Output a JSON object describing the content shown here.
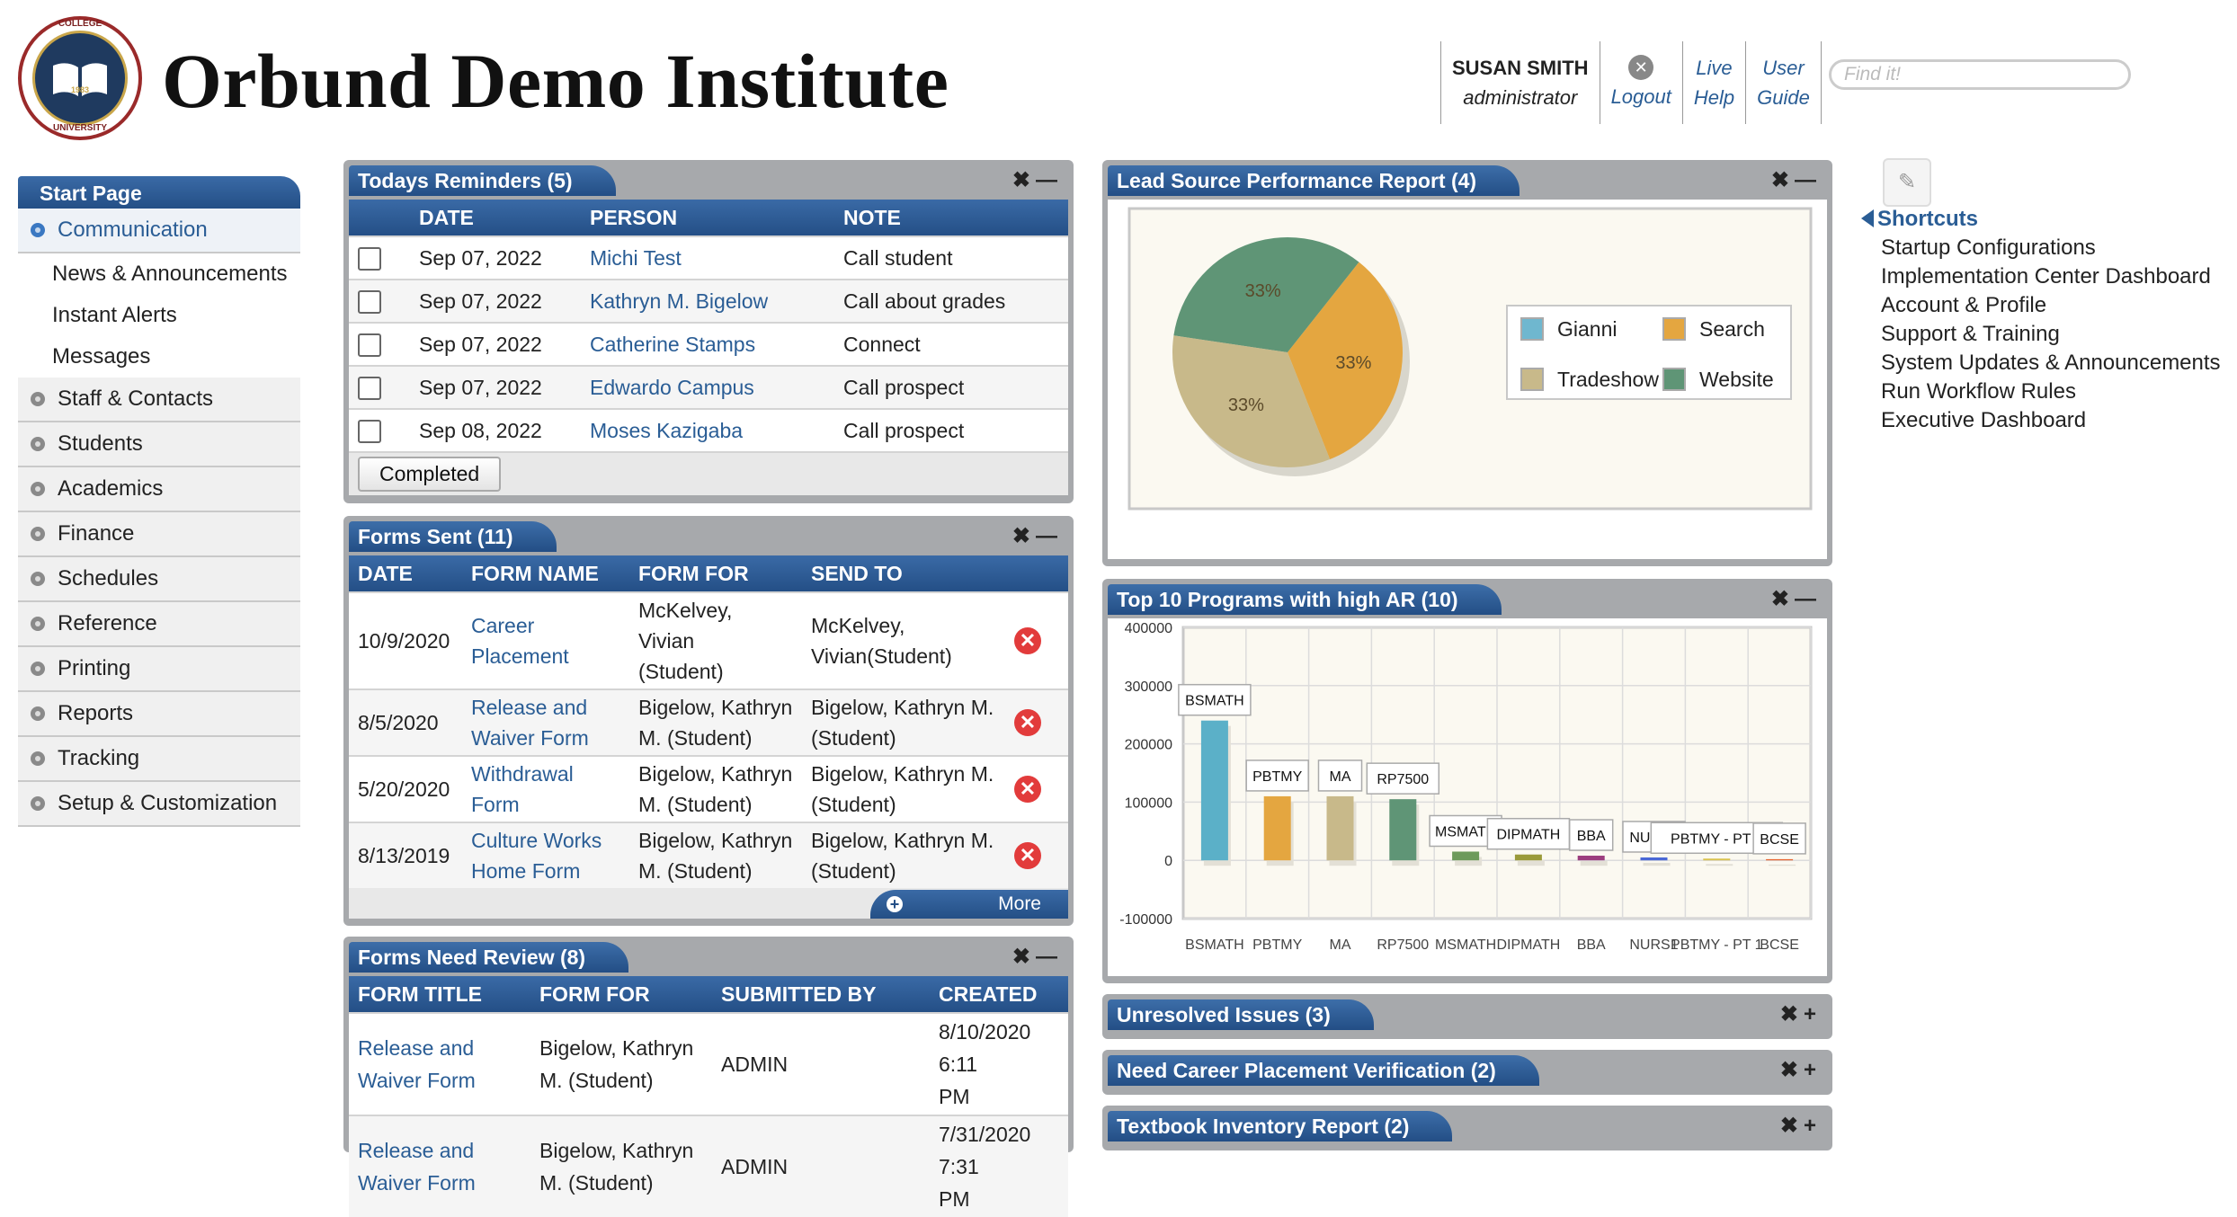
{
  "header": {
    "logo_text_top": "COLLEGE",
    "logo_text_year": "1983",
    "logo_text_bottom": "UNIVERSITY",
    "title": "Orbund Demo Institute",
    "user_name": "SUSAN SMITH",
    "user_role": "administrator",
    "logout": "Logout",
    "live_help_1": "Live",
    "live_help_2": "Help",
    "user_guide_1": "User",
    "user_guide_2": "Guide",
    "search_placeholder": "Find it!"
  },
  "nav": {
    "start": "Start Page",
    "communication": "Communication",
    "sub": [
      "News & Announcements",
      "Instant Alerts",
      "Messages"
    ],
    "items": [
      "Staff & Contacts",
      "Students",
      "Academics",
      "Finance",
      "Schedules",
      "Reference",
      "Printing",
      "Reports",
      "Tracking",
      "Setup & Customization"
    ]
  },
  "reminders": {
    "title": "Todays Reminders (5)",
    "headers": [
      "DATE",
      "PERSON",
      "NOTE"
    ],
    "rows": [
      {
        "date": "Sep 07, 2022",
        "person": "Michi Test",
        "note": "Call student"
      },
      {
        "date": "Sep 07, 2022",
        "person": "Kathryn M. Bigelow",
        "note": "Call about grades"
      },
      {
        "date": "Sep 07, 2022",
        "person": "Catherine Stamps",
        "note": "Connect"
      },
      {
        "date": "Sep 07, 2022",
        "person": "Edwardo Campus",
        "note": "Call prospect"
      },
      {
        "date": "Sep 08, 2022",
        "person": "Moses Kazigaba",
        "note": "Call prospect"
      }
    ],
    "button": "Completed"
  },
  "forms_sent": {
    "title": "Forms Sent (11)",
    "headers": [
      "DATE",
      "FORM NAME",
      "FORM FOR",
      "SEND TO"
    ],
    "rows": [
      {
        "date": "10/9/2020",
        "name1": "Career",
        "name2": "Placement",
        "for1": "McKelvey, Vivian",
        "for2": "(Student)",
        "to1": "McKelvey,",
        "to2": "Vivian(Student)"
      },
      {
        "date": "8/5/2020",
        "name1": "Release and",
        "name2": "Waiver Form",
        "for1": "Bigelow, Kathryn",
        "for2": "M. (Student)",
        "to1": "Bigelow, Kathryn M.",
        "to2": "(Student)"
      },
      {
        "date": "5/20/2020",
        "name1": "Withdrawal",
        "name2": "Form",
        "for1": "Bigelow, Kathryn",
        "for2": "M. (Student)",
        "to1": "Bigelow, Kathryn M.",
        "to2": "(Student)"
      },
      {
        "date": "8/13/2019",
        "name1": "Culture Works",
        "name2": "Home Form",
        "for1": "Bigelow, Kathryn",
        "for2": "M. (Student)",
        "to1": "Bigelow, Kathryn M.",
        "to2": "(Student)"
      }
    ],
    "more": "More"
  },
  "forms_review": {
    "title": "Forms Need Review (8)",
    "headers": [
      "FORM TITLE",
      "FORM FOR",
      "SUBMITTED BY",
      "CREATED"
    ],
    "rows": [
      {
        "t1": "Release and",
        "t2": "Waiver Form",
        "f1": "Bigelow, Kathryn",
        "f2": "M. (Student)",
        "by": "ADMIN",
        "c1": "8/10/2020 6:11",
        "c2": "PM"
      },
      {
        "t1": "Release and",
        "t2": "Waiver Form",
        "f1": "Bigelow, Kathryn",
        "f2": "M. (Student)",
        "by": "ADMIN",
        "c1": "7/31/2020 7:31",
        "c2": "PM"
      }
    ]
  },
  "lead_source": {
    "title": "Lead Source Performance Report (4)"
  },
  "top_programs": {
    "title": "Top 10 Programs with high AR (10)"
  },
  "collapsed_panels": [
    {
      "title": "Unresolved Issues (3)"
    },
    {
      "title": "Need Career Placement Verification (2)"
    },
    {
      "title": "Textbook Inventory Report (2)"
    }
  ],
  "panel_controls": {
    "close": "✖",
    "minimize": "—",
    "expand": "+"
  },
  "shortcuts": {
    "title": "Shortcuts",
    "items": [
      "Startup Configurations",
      "Implementation Center Dashboard",
      "Account & Profile",
      "Support & Training",
      "System Updates & Announcements",
      "Run Workflow Rules",
      "Executive Dashboard"
    ]
  },
  "chart_data": [
    {
      "type": "pie",
      "title": "Lead Source Performance Report (4)",
      "categories": [
        "Gianni",
        "Search",
        "Tradeshow",
        "Website"
      ],
      "values": [
        0,
        33,
        33,
        33
      ],
      "labels": [
        "",
        "33%",
        "33%",
        "33%"
      ],
      "colors": [
        "#6fb7cf",
        "#e4a640",
        "#c8b98a",
        "#5f9576"
      ],
      "legend": "right"
    },
    {
      "type": "bar",
      "title": "Top 10 Programs with high AR (10)",
      "categories": [
        "BSMATH",
        "PBTMY",
        "MA",
        "RP7500",
        "MSMATH",
        "DIPMATH",
        "BBA",
        "NURS1",
        "PBTMY - PT 1",
        "BCSE"
      ],
      "tick_labels": [
        "BSMATH",
        "PBTMY",
        "MA",
        "RP7500",
        "MSMATH",
        "DIPMATH",
        "BBA",
        "NURS1",
        "PBTMY - PT 1",
        "BCSE"
      ],
      "values": [
        240000,
        110000,
        110000,
        105000,
        15000,
        10000,
        8000,
        5000,
        3000,
        2000
      ],
      "colors": [
        "#5bb0c8",
        "#e4a640",
        "#c8b98a",
        "#5f9576",
        "#6d9a5b",
        "#9a9a3a",
        "#9c3d7f",
        "#4a68d6",
        "#d9c24f",
        "#e8642f"
      ],
      "ylim": [
        -100000,
        400000
      ],
      "yticks": [
        400000,
        300000,
        200000,
        100000,
        0,
        -100000
      ],
      "ytick_labels": [
        "400000",
        "300000",
        "200000",
        "100000",
        "0",
        "-100000"
      ],
      "grid": true
    }
  ]
}
